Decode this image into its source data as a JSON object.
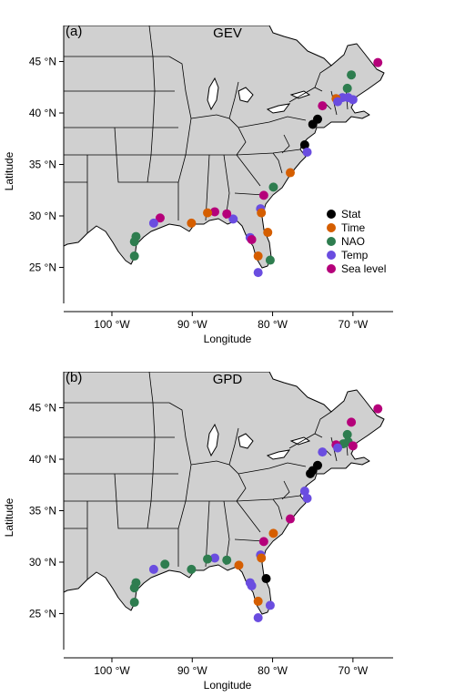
{
  "colors": {
    "Stat": "#000000",
    "Time": "#d55e00",
    "NAO": "#2e7d4f",
    "Temp": "#6a4de0",
    "Sea level": "#b5007a",
    "land": "#d0d0d0"
  },
  "legend": [
    "Stat",
    "Time",
    "NAO",
    "Temp",
    "Sea level"
  ],
  "xlabel": "Longitude",
  "ylabel": "Latitude",
  "chart_data": [
    {
      "type": "scatter",
      "panel_label": "(a)",
      "title": "GEV",
      "xlabel": "Longitude",
      "ylabel": "Latitude",
      "xlim": [
        -106,
        -65
      ],
      "ylim": [
        21.5,
        48.5
      ],
      "xticks": [
        -100,
        -90,
        -80,
        -70
      ],
      "xtick_labels": [
        "100 °W",
        "90 °W",
        "80 °W",
        "70 °W"
      ],
      "yticks": [
        25,
        30,
        35,
        40,
        45
      ],
      "ytick_labels": [
        "25 °N",
        "30 °N",
        "35 °N",
        "40 °N",
        "45 °N"
      ],
      "legend_placement": "right",
      "points": [
        {
          "lon": -66.9,
          "lat": 44.9,
          "cat": "Sea level"
        },
        {
          "lon": -70.2,
          "lat": 43.7,
          "cat": "NAO"
        },
        {
          "lon": -70.7,
          "lat": 42.4,
          "cat": "NAO"
        },
        {
          "lon": -70.6,
          "lat": 41.5,
          "cat": "Temp"
        },
        {
          "lon": -70.0,
          "lat": 41.3,
          "cat": "Temp"
        },
        {
          "lon": -71.3,
          "lat": 41.5,
          "cat": "Temp"
        },
        {
          "lon": -72.1,
          "lat": 41.4,
          "cat": "Time"
        },
        {
          "lon": -71.9,
          "lat": 41.1,
          "cat": "Temp"
        },
        {
          "lon": -73.8,
          "lat": 40.7,
          "cat": "Sea level"
        },
        {
          "lon": -74.4,
          "lat": 39.4,
          "cat": "Stat"
        },
        {
          "lon": -75.0,
          "lat": 38.9,
          "cat": "Stat"
        },
        {
          "lon": -76.0,
          "lat": 36.9,
          "cat": "Stat"
        },
        {
          "lon": -75.7,
          "lat": 36.2,
          "cat": "Temp"
        },
        {
          "lon": -77.8,
          "lat": 34.2,
          "cat": "Time"
        },
        {
          "lon": -79.9,
          "lat": 32.8,
          "cat": "NAO"
        },
        {
          "lon": -81.1,
          "lat": 32.0,
          "cat": "Sea level"
        },
        {
          "lon": -81.5,
          "lat": 30.7,
          "cat": "Temp"
        },
        {
          "lon": -81.4,
          "lat": 30.3,
          "cat": "Time"
        },
        {
          "lon": -80.6,
          "lat": 28.4,
          "cat": "Time"
        },
        {
          "lon": -82.8,
          "lat": 27.9,
          "cat": "Temp"
        },
        {
          "lon": -82.6,
          "lat": 27.7,
          "cat": "Sea level"
        },
        {
          "lon": -81.8,
          "lat": 26.1,
          "cat": "Time"
        },
        {
          "lon": -80.3,
          "lat": 25.7,
          "cat": "NAO"
        },
        {
          "lon": -81.8,
          "lat": 24.5,
          "cat": "Temp"
        },
        {
          "lon": -84.9,
          "lat": 29.7,
          "cat": "Temp"
        },
        {
          "lon": -85.7,
          "lat": 30.2,
          "cat": "Sea level"
        },
        {
          "lon": -87.2,
          "lat": 30.4,
          "cat": "Sea level"
        },
        {
          "lon": -88.1,
          "lat": 30.3,
          "cat": "Time"
        },
        {
          "lon": -90.1,
          "lat": 29.3,
          "cat": "Time"
        },
        {
          "lon": -94.0,
          "lat": 29.8,
          "cat": "Sea level"
        },
        {
          "lon": -94.8,
          "lat": 29.3,
          "cat": "Temp"
        },
        {
          "lon": -97.0,
          "lat": 28.0,
          "cat": "NAO"
        },
        {
          "lon": -97.2,
          "lat": 27.5,
          "cat": "NAO"
        },
        {
          "lon": -97.2,
          "lat": 26.1,
          "cat": "NAO"
        }
      ]
    },
    {
      "type": "scatter",
      "panel_label": "(b)",
      "title": "GPD",
      "xlabel": "Longitude",
      "ylabel": "Latitude",
      "xlim": [
        -106,
        -65
      ],
      "ylim": [
        21.5,
        48.5
      ],
      "xticks": [
        -100,
        -90,
        -80,
        -70
      ],
      "xtick_labels": [
        "100 °W",
        "90 °W",
        "80 °W",
        "70 °W"
      ],
      "yticks": [
        25,
        30,
        35,
        40,
        45
      ],
      "ytick_labels": [
        "25 °N",
        "30 °N",
        "35 °N",
        "40 °N",
        "45 °N"
      ],
      "points": [
        {
          "lon": -66.9,
          "lat": 44.9,
          "cat": "Sea level"
        },
        {
          "lon": -70.2,
          "lat": 43.6,
          "cat": "Sea level"
        },
        {
          "lon": -70.7,
          "lat": 42.4,
          "cat": "NAO"
        },
        {
          "lon": -70.6,
          "lat": 41.7,
          "cat": "NAO"
        },
        {
          "lon": -70.0,
          "lat": 41.3,
          "cat": "Sea level"
        },
        {
          "lon": -71.2,
          "lat": 41.5,
          "cat": "NAO"
        },
        {
          "lon": -72.1,
          "lat": 41.4,
          "cat": "Sea level"
        },
        {
          "lon": -71.9,
          "lat": 41.1,
          "cat": "Temp"
        },
        {
          "lon": -73.8,
          "lat": 40.7,
          "cat": "Temp"
        },
        {
          "lon": -74.4,
          "lat": 39.4,
          "cat": "Stat"
        },
        {
          "lon": -75.0,
          "lat": 38.9,
          "cat": "Stat"
        },
        {
          "lon": -75.3,
          "lat": 38.6,
          "cat": "Stat"
        },
        {
          "lon": -76.0,
          "lat": 36.9,
          "cat": "Temp"
        },
        {
          "lon": -75.7,
          "lat": 36.2,
          "cat": "Temp"
        },
        {
          "lon": -77.8,
          "lat": 34.2,
          "cat": "Sea level"
        },
        {
          "lon": -79.9,
          "lat": 32.8,
          "cat": "Time"
        },
        {
          "lon": -81.1,
          "lat": 32.0,
          "cat": "Sea level"
        },
        {
          "lon": -81.5,
          "lat": 30.7,
          "cat": "Temp"
        },
        {
          "lon": -81.4,
          "lat": 30.4,
          "cat": "Time"
        },
        {
          "lon": -80.8,
          "lat": 28.4,
          "cat": "Stat"
        },
        {
          "lon": -82.8,
          "lat": 28.0,
          "cat": "Temp"
        },
        {
          "lon": -82.6,
          "lat": 27.7,
          "cat": "Temp"
        },
        {
          "lon": -81.8,
          "lat": 26.2,
          "cat": "Time"
        },
        {
          "lon": -80.3,
          "lat": 25.8,
          "cat": "Temp"
        },
        {
          "lon": -81.8,
          "lat": 24.6,
          "cat": "Temp"
        },
        {
          "lon": -84.2,
          "lat": 29.7,
          "cat": "Time"
        },
        {
          "lon": -85.7,
          "lat": 30.2,
          "cat": "NAO"
        },
        {
          "lon": -87.2,
          "lat": 30.4,
          "cat": "Temp"
        },
        {
          "lon": -88.1,
          "lat": 30.3,
          "cat": "NAO"
        },
        {
          "lon": -90.1,
          "lat": 29.3,
          "cat": "NAO"
        },
        {
          "lon": -93.4,
          "lat": 29.8,
          "cat": "NAO"
        },
        {
          "lon": -94.8,
          "lat": 29.3,
          "cat": "Temp"
        },
        {
          "lon": -97.0,
          "lat": 28.0,
          "cat": "NAO"
        },
        {
          "lon": -97.2,
          "lat": 27.5,
          "cat": "NAO"
        },
        {
          "lon": -97.2,
          "lat": 26.1,
          "cat": "NAO"
        }
      ]
    }
  ]
}
